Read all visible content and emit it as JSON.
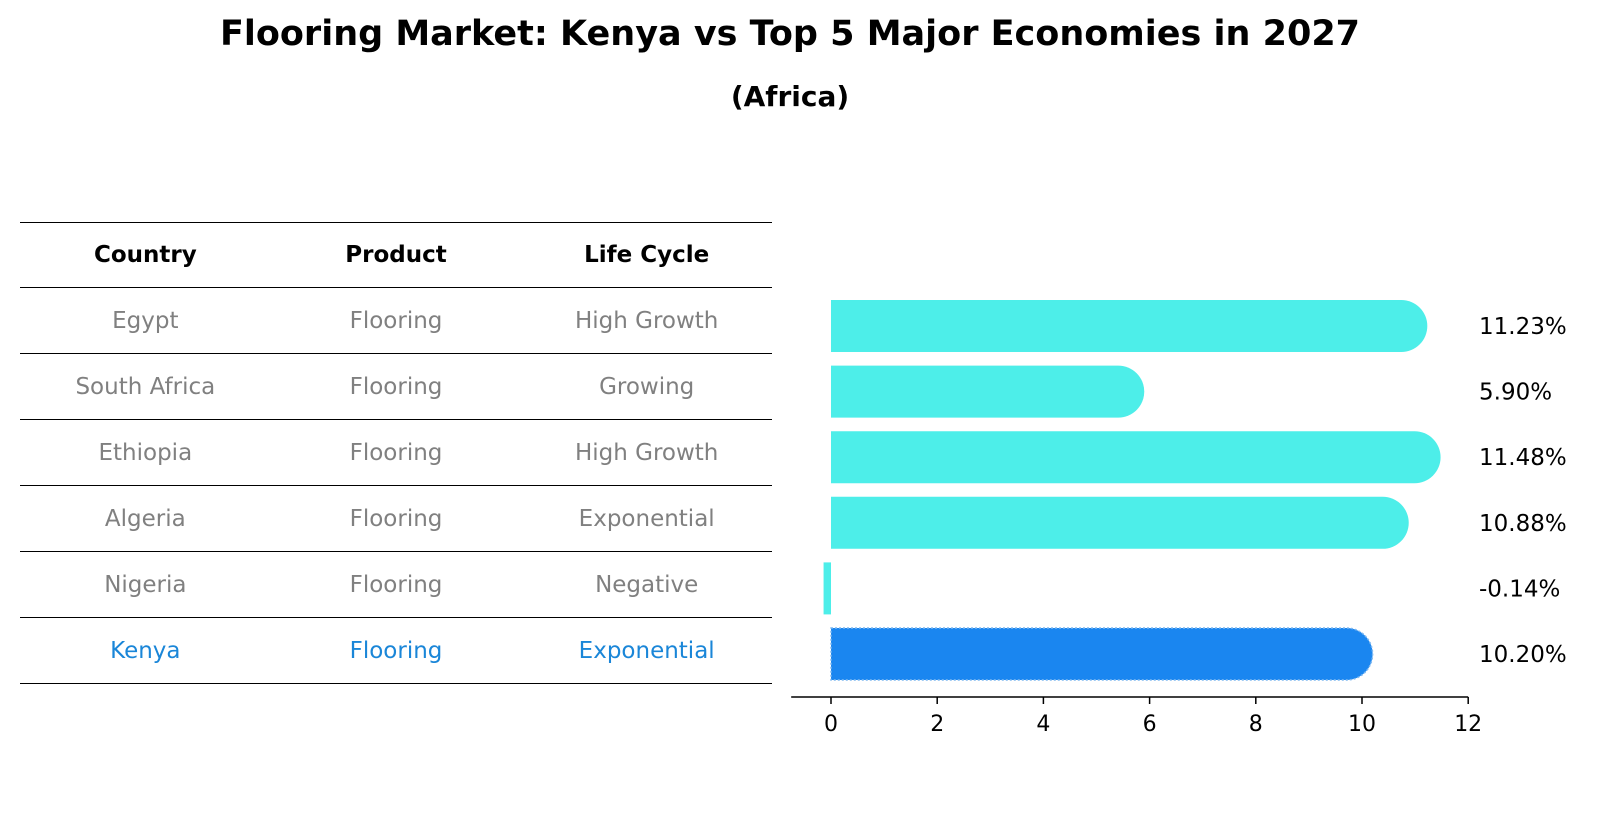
{
  "title": "Flooring Market: Kenya vs Top 5 Major Economies in 2027",
  "subtitle": "(Africa)",
  "table": {
    "headers": [
      "Country",
      "Product",
      "Life Cycle"
    ],
    "rows": [
      {
        "country": "Egypt",
        "product": "Flooring",
        "life_cycle": "High Growth"
      },
      {
        "country": "South Africa",
        "product": "Flooring",
        "life_cycle": "Growing"
      },
      {
        "country": "Ethiopia",
        "product": "Flooring",
        "life_cycle": "High Growth"
      },
      {
        "country": "Algeria",
        "product": "Flooring",
        "life_cycle": "Exponential"
      },
      {
        "country": "Nigeria",
        "product": "Flooring",
        "life_cycle": "Negative"
      },
      {
        "country": "Kenya",
        "product": "Flooring",
        "life_cycle": "Exponential"
      }
    ]
  },
  "chart_data": {
    "type": "bar",
    "orientation": "horizontal",
    "categories": [
      "Egypt",
      "South Africa",
      "Ethiopia",
      "Algeria",
      "Nigeria",
      "Kenya"
    ],
    "values": [
      11.23,
      5.9,
      11.48,
      10.88,
      -0.14,
      10.2
    ],
    "value_labels": [
      "11.23%",
      "5.90%",
      "11.48%",
      "10.88%",
      "-0.14%",
      "10.20%"
    ],
    "highlight": "Kenya",
    "xlim": [
      -0.75,
      12
    ],
    "xticks": [
      0,
      2,
      4,
      6,
      8,
      10,
      12
    ],
    "xlabel": "",
    "ylabel": "",
    "grid": false,
    "colors": {
      "bar": "#4deee9",
      "highlight": "#1a86f0"
    }
  },
  "colors": {
    "muted_text": "#808080",
    "highlight_text": "#1a86d8"
  }
}
